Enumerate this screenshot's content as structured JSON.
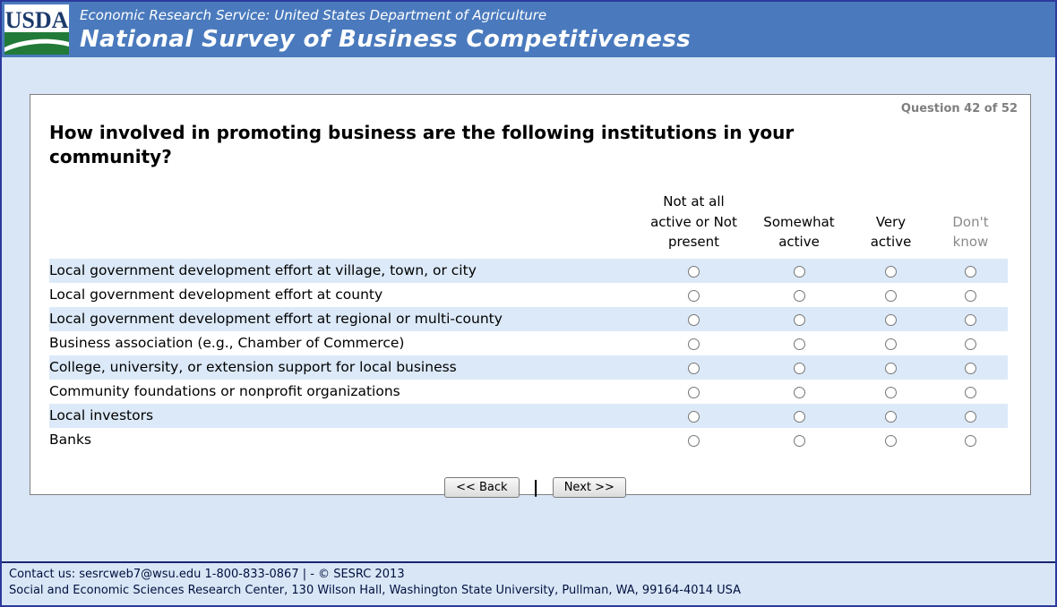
{
  "header": {
    "logo_text": "USDA",
    "agency_line": "Economic Research Service: United States Department of Agriculture",
    "survey_title": "National Survey of Business Competitiveness"
  },
  "question": {
    "counter": "Question 42 of 52",
    "text": "How involved in promoting business are the following institutions in your community?",
    "columns": [
      "Not at all active or Not present",
      "Somewhat active",
      "Very active",
      "Don't know"
    ],
    "rows": [
      "Local government development effort at village, town, or city",
      "Local government development effort at county",
      "Local government development effort at regional or multi-county",
      "Business association (e.g., Chamber of Commerce)",
      "College, university, or extension support for local business",
      "Community foundations or nonprofit organizations",
      "Local investors",
      "Banks"
    ]
  },
  "nav": {
    "back_label": "<< Back",
    "divider": "|",
    "next_label": "Next >>"
  },
  "footer": {
    "line1": "Contact us: sesrcweb7@wsu.edu 1-800-833-0867 | - © SESRC 2013",
    "line2": "Social and Economic Sciences Research Center, 130 Wilson Hall, Washington State University, Pullman, WA, 99164-4014 USA"
  },
  "colors": {
    "header_blue": "#4a7abd",
    "page_bg": "#d9e6f5",
    "row_alt": "#dce9f8",
    "dont_know_gray": "#8a8a8a",
    "logo_green": "#217a38",
    "logo_blue": "#1b3a6b"
  }
}
